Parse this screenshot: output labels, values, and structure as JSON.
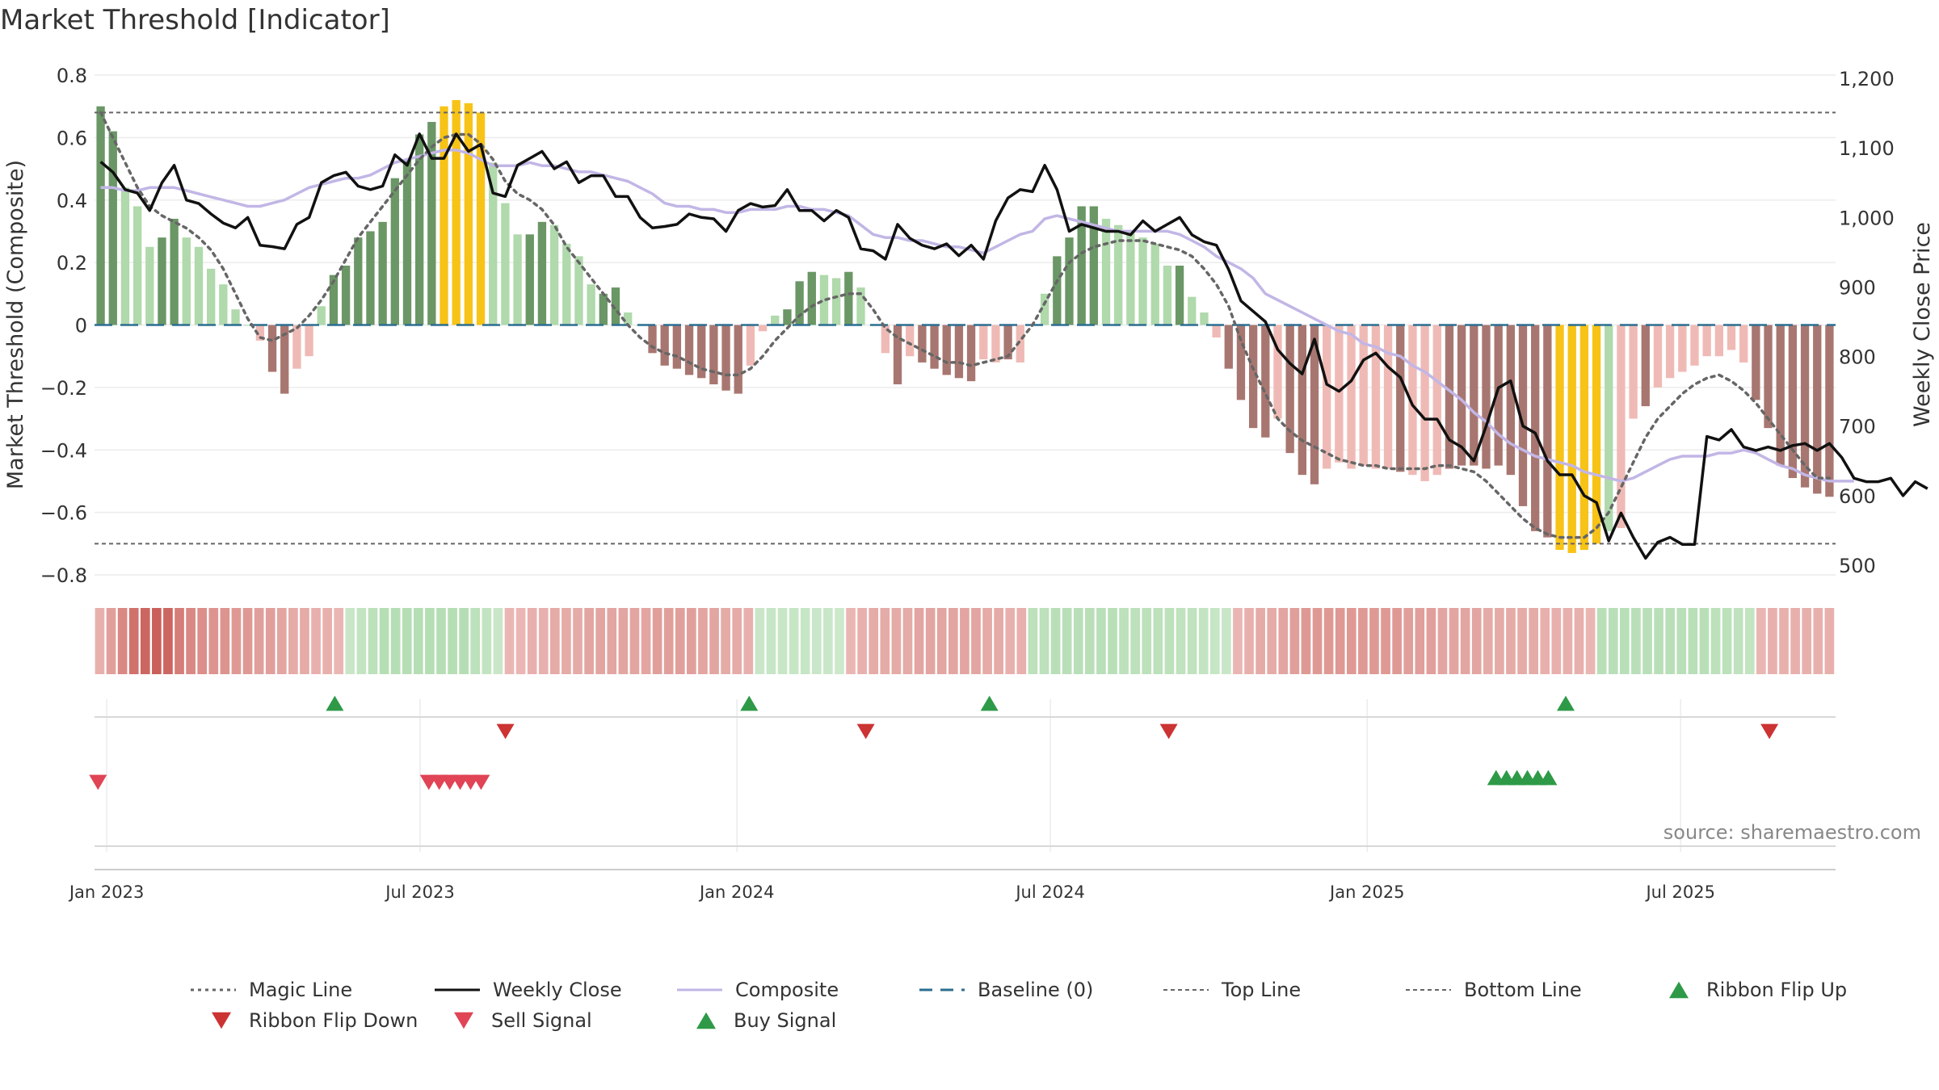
{
  "chart_data": {
    "type": "bar",
    "title": "Market Threshold [Indicator]",
    "ylabel": "Market Threshold (Composite)",
    "y2label": "Weekly Close Price",
    "source": "source: sharemaestro.com",
    "x_tick_labels": [
      "Jan 2023",
      "Jul 2023",
      "Jan 2024",
      "Jul 2024",
      "Jan 2025",
      "Jul 2025"
    ],
    "y_tick_labels": [
      "0.8",
      "0.6",
      "0.4",
      "0.2",
      "0",
      "−0.2",
      "−0.4",
      "−0.6",
      "−0.8"
    ],
    "y2_tick_labels": [
      "1,200",
      "1,100",
      "1,000",
      "900",
      "800",
      "700",
      "600",
      "500"
    ],
    "ylim": [
      -0.8,
      0.8
    ],
    "y2lim": [
      500,
      1200
    ],
    "top_line": 0.68,
    "bottom_line": -0.7,
    "grid": true,
    "legend_position": "bottom",
    "colors": {
      "strong_up": "#6a9765",
      "weak_up": "#b0d9ac",
      "strong_down": "#a87670",
      "weak_down": "#efbab5",
      "extreme": "#f7c317",
      "weekly_close": "#111111",
      "composite": "#c2b6e6",
      "magic": "#666666",
      "baseline": "#2c6e91",
      "ribbon_flip_up": "#2e9a47",
      "ribbon_flip_down": "#cc3333",
      "sell": "#e04455",
      "buy": "#2e9a47"
    },
    "composite_bars": [
      0.7,
      0.62,
      0.44,
      0.38,
      0.25,
      0.28,
      0.34,
      0.28,
      0.25,
      0.18,
      0.13,
      0.05,
      0,
      -0.05,
      -0.15,
      -0.22,
      -0.14,
      -0.1,
      0.06,
      0.16,
      0.19,
      0.28,
      0.3,
      0.33,
      0.47,
      0.53,
      0.61,
      0.65,
      0.7,
      0.72,
      0.71,
      0.68,
      0.52,
      0.39,
      0.29,
      0.29,
      0.33,
      0.32,
      0.26,
      0.22,
      0.13,
      0.1,
      0.12,
      0.04,
      0,
      -0.09,
      -0.13,
      -0.14,
      -0.16,
      -0.17,
      -0.19,
      -0.21,
      -0.22,
      -0.13,
      -0.02,
      0.03,
      0.05,
      0.14,
      0.17,
      0.16,
      0.15,
      0.17,
      0.12,
      0,
      -0.09,
      -0.19,
      -0.1,
      -0.12,
      -0.14,
      -0.16,
      -0.17,
      -0.18,
      -0.11,
      -0.12,
      -0.11,
      -0.12,
      0,
      0.1,
      0.22,
      0.28,
      0.38,
      0.38,
      0.34,
      0.32,
      0.3,
      0.28,
      0.26,
      0.19,
      0.19,
      0.09,
      0.04,
      -0.04,
      -0.14,
      -0.24,
      -0.33,
      -0.36,
      -0.3,
      -0.41,
      -0.48,
      -0.51,
      -0.46,
      -0.44,
      -0.46,
      -0.45,
      -0.46,
      -0.46,
      -0.47,
      -0.48,
      -0.5,
      -0.48,
      -0.46,
      -0.45,
      -0.45,
      -0.46,
      -0.45,
      -0.48,
      -0.58,
      -0.66,
      -0.68,
      -0.72,
      -0.73,
      -0.72,
      -0.7,
      -0.66,
      -0.65,
      -0.3,
      -0.26,
      -0.2,
      -0.17,
      -0.15,
      -0.13,
      -0.1,
      -0.1,
      -0.08,
      -0.12,
      -0.24,
      -0.33,
      -0.45,
      -0.49,
      -0.52,
      -0.54,
      -0.55
    ],
    "bar_categories": [
      "strong_up",
      "strong_up",
      "weak_up",
      "weak_up",
      "weak_up",
      "strong_up",
      "strong_up",
      "weak_up",
      "weak_up",
      "weak_up",
      "weak_up",
      "weak_up",
      "weak_up",
      "weak_down",
      "strong_down",
      "strong_down",
      "weak_down",
      "weak_down",
      "weak_up",
      "strong_up",
      "strong_up",
      "strong_up",
      "strong_up",
      "strong_up",
      "strong_up",
      "strong_up",
      "strong_up",
      "strong_up",
      "extreme",
      "extreme",
      "extreme",
      "extreme",
      "weak_up",
      "weak_up",
      "weak_up",
      "strong_up",
      "strong_up",
      "weak_up",
      "weak_up",
      "weak_up",
      "weak_up",
      "strong_up",
      "strong_up",
      "weak_up",
      "weak_up",
      "strong_down",
      "strong_down",
      "strong_down",
      "strong_down",
      "strong_down",
      "strong_down",
      "strong_down",
      "strong_down",
      "weak_down",
      "weak_down",
      "weak_up",
      "strong_up",
      "strong_up",
      "strong_up",
      "weak_up",
      "weak_up",
      "strong_up",
      "weak_up",
      "weak_up",
      "weak_down",
      "strong_down",
      "weak_down",
      "strong_down",
      "strong_down",
      "strong_down",
      "strong_down",
      "strong_down",
      "weak_down",
      "weak_down",
      "strong_down",
      "weak_down",
      "weak_up",
      "weak_up",
      "strong_up",
      "strong_up",
      "strong_up",
      "strong_up",
      "weak_up",
      "weak_up",
      "weak_up",
      "weak_up",
      "weak_up",
      "weak_up",
      "strong_up",
      "weak_up",
      "weak_up",
      "weak_down",
      "strong_down",
      "strong_down",
      "strong_down",
      "strong_down",
      "weak_down",
      "strong_down",
      "strong_down",
      "strong_down",
      "weak_down",
      "weak_down",
      "weak_down",
      "weak_down",
      "weak_down",
      "weak_down",
      "strong_down",
      "weak_down",
      "weak_down",
      "weak_down",
      "strong_down",
      "strong_down",
      "strong_down",
      "strong_down",
      "strong_down",
      "strong_down",
      "strong_down",
      "strong_down",
      "strong_down",
      "extreme",
      "extreme",
      "extreme",
      "extreme",
      "weak_up",
      "weak_down",
      "weak_down",
      "strong_down",
      "weak_down",
      "weak_down",
      "weak_down",
      "weak_down",
      "weak_down",
      "weak_down",
      "weak_down",
      "weak_down",
      "strong_down",
      "strong_down",
      "strong_down",
      "strong_down",
      "strong_down",
      "strong_down",
      "strong_down"
    ],
    "weekly_close": [
      1080,
      1065,
      1040,
      1035,
      1010,
      1050,
      1075,
      1025,
      1020,
      1005,
      992,
      985,
      1000,
      960,
      958,
      955,
      990,
      1000,
      1050,
      1060,
      1065,
      1045,
      1040,
      1045,
      1090,
      1075,
      1120,
      1085,
      1085,
      1120,
      1095,
      1105,
      1035,
      1030,
      1075,
      1085,
      1095,
      1070,
      1080,
      1050,
      1060,
      1060,
      1030,
      1030,
      1000,
      985,
      987,
      990,
      1005,
      1000,
      998,
      980,
      1010,
      1020,
      1015,
      1017,
      1040,
      1010,
      1010,
      995,
      1010,
      1000,
      955,
      952,
      940,
      990,
      970,
      960,
      955,
      962,
      945,
      960,
      940,
      995,
      1028,
      1040,
      1037,
      1075,
      1040,
      980,
      990,
      985,
      980,
      980,
      975,
      995,
      980,
      990,
      1000,
      975,
      965,
      960,
      925,
      880,
      865,
      850,
      810,
      790,
      775,
      825,
      760,
      750,
      765,
      795,
      805,
      785,
      770,
      730,
      710,
      710,
      680,
      670,
      650,
      700,
      755,
      765,
      700,
      690,
      650,
      630,
      630,
      600,
      590,
      535,
      575,
      540,
      510,
      533,
      540,
      530,
      530,
      685,
      680,
      695,
      670,
      665,
      670,
      665,
      672,
      675,
      665,
      675,
      655,
      625,
      620,
      620,
      625,
      600,
      620,
      610
    ],
    "composite_line": [
      0.44,
      0.44,
      0.43,
      0.43,
      0.44,
      0.44,
      0.44,
      0.43,
      0.42,
      0.41,
      0.4,
      0.39,
      0.38,
      0.38,
      0.39,
      0.4,
      0.42,
      0.44,
      0.45,
      0.46,
      0.47,
      0.47,
      0.48,
      0.5,
      0.52,
      0.53,
      0.54,
      0.55,
      0.56,
      0.56,
      0.55,
      0.53,
      0.51,
      0.51,
      0.51,
      0.52,
      0.51,
      0.51,
      0.5,
      0.49,
      0.49,
      0.48,
      0.47,
      0.46,
      0.44,
      0.42,
      0.39,
      0.38,
      0.38,
      0.37,
      0.37,
      0.36,
      0.36,
      0.37,
      0.37,
      0.37,
      0.38,
      0.38,
      0.37,
      0.37,
      0.36,
      0.35,
      0.32,
      0.29,
      0.28,
      0.28,
      0.27,
      0.27,
      0.26,
      0.25,
      0.25,
      0.24,
      0.23,
      0.25,
      0.27,
      0.29,
      0.3,
      0.34,
      0.35,
      0.34,
      0.33,
      0.32,
      0.31,
      0.3,
      0.3,
      0.3,
      0.3,
      0.3,
      0.29,
      0.27,
      0.25,
      0.22,
      0.2,
      0.18,
      0.15,
      0.1,
      0.08,
      0.06,
      0.04,
      0.02,
      0,
      -0.02,
      -0.03,
      -0.06,
      -0.07,
      -0.09,
      -0.1,
      -0.13,
      -0.15,
      -0.18,
      -0.21,
      -0.24,
      -0.28,
      -0.31,
      -0.35,
      -0.38,
      -0.4,
      -0.42,
      -0.43,
      -0.44,
      -0.45,
      -0.47,
      -0.48,
      -0.49,
      -0.5,
      -0.49,
      -0.47,
      -0.45,
      -0.43,
      -0.42,
      -0.42,
      -0.42,
      -0.41,
      -0.41,
      -0.4,
      -0.41,
      -0.43,
      -0.45,
      -0.46,
      -0.48,
      -0.49,
      -0.5,
      -0.5,
      -0.5
    ],
    "magic_line": [
      0.68,
      0.6,
      0.52,
      0.44,
      0.38,
      0.35,
      0.33,
      0.31,
      0.28,
      0.24,
      0.18,
      0.1,
      0.02,
      -0.04,
      -0.05,
      -0.03,
      -0.01,
      0.03,
      0.08,
      0.14,
      0.21,
      0.28,
      0.33,
      0.38,
      0.43,
      0.48,
      0.53,
      0.57,
      0.6,
      0.61,
      0.61,
      0.58,
      0.53,
      0.46,
      0.42,
      0.4,
      0.37,
      0.32,
      0.25,
      0.2,
      0.15,
      0.1,
      0.05,
      0.0,
      -0.04,
      -0.07,
      -0.09,
      -0.1,
      -0.12,
      -0.14,
      -0.15,
      -0.16,
      -0.16,
      -0.14,
      -0.1,
      -0.05,
      -0.01,
      0.03,
      0.06,
      0.08,
      0.09,
      0.1,
      0.1,
      0.05,
      -0.01,
      -0.04,
      -0.06,
      -0.08,
      -0.1,
      -0.12,
      -0.12,
      -0.13,
      -0.12,
      -0.11,
      -0.1,
      -0.05,
      0.0,
      0.07,
      0.14,
      0.2,
      0.23,
      0.25,
      0.26,
      0.27,
      0.27,
      0.27,
      0.26,
      0.25,
      0.24,
      0.22,
      0.18,
      0.13,
      0.06,
      -0.05,
      -0.14,
      -0.22,
      -0.3,
      -0.34,
      -0.37,
      -0.39,
      -0.41,
      -0.43,
      -0.44,
      -0.45,
      -0.45,
      -0.46,
      -0.46,
      -0.46,
      -0.46,
      -0.45,
      -0.45,
      -0.46,
      -0.47,
      -0.5,
      -0.54,
      -0.58,
      -0.62,
      -0.65,
      -0.67,
      -0.68,
      -0.68,
      -0.68,
      -0.65,
      -0.6,
      -0.52,
      -0.44,
      -0.36,
      -0.3,
      -0.26,
      -0.22,
      -0.19,
      -0.17,
      -0.16,
      -0.18,
      -0.21,
      -0.25,
      -0.3,
      -0.35,
      -0.4,
      -0.45,
      -0.49,
      -0.49
    ],
    "ribbon": [
      -0.25,
      -0.4,
      -0.6,
      -0.8,
      -0.9,
      -0.95,
      -0.9,
      -0.7,
      -0.6,
      -0.55,
      -0.5,
      -0.5,
      -0.45,
      -0.45,
      -0.4,
      -0.4,
      -0.35,
      -0.3,
      -0.3,
      -0.25,
      -0.25,
      -0.2,
      0.2,
      0.3,
      0.4,
      0.5,
      0.5,
      0.5,
      0.5,
      0.5,
      0.5,
      0.5,
      0.5,
      0.4,
      0.3,
      0.2,
      -0.2,
      -0.2,
      -0.25,
      -0.25,
      -0.3,
      -0.3,
      -0.3,
      -0.35,
      -0.35,
      -0.35,
      -0.35,
      -0.35,
      -0.35,
      -0.4,
      -0.4,
      -0.4,
      -0.4,
      -0.35,
      -0.35,
      -0.3,
      -0.3,
      -0.25,
      0.2,
      0.25,
      0.25,
      0.25,
      0.25,
      0.2,
      0.2,
      0.15,
      -0.2,
      -0.25,
      -0.3,
      -0.3,
      -0.3,
      -0.3,
      -0.35,
      -0.35,
      -0.35,
      -0.35,
      -0.35,
      -0.35,
      -0.3,
      -0.3,
      -0.25,
      -0.25,
      0.4,
      0.4,
      0.45,
      0.45,
      0.45,
      0.45,
      0.45,
      0.45,
      0.4,
      0.4,
      0.4,
      0.4,
      0.4,
      0.35,
      0.35,
      0.3,
      0.25,
      0.2,
      -0.2,
      -0.25,
      -0.3,
      -0.3,
      -0.35,
      -0.4,
      -0.45,
      -0.45,
      -0.45,
      -0.45,
      -0.45,
      -0.45,
      -0.45,
      -0.45,
      -0.45,
      -0.4,
      -0.4,
      -0.4,
      -0.35,
      -0.35,
      -0.35,
      -0.35,
      -0.3,
      -0.3,
      -0.3,
      -0.3,
      -0.3,
      -0.25,
      -0.25,
      -0.25,
      -0.25,
      -0.2,
      0.45,
      0.45,
      0.45,
      0.45,
      0.45,
      0.45,
      0.45,
      0.45,
      0.45,
      0.45,
      0.4,
      0.4,
      0.35,
      0.3,
      -0.2,
      -0.25,
      -0.25,
      -0.25,
      -0.25,
      -0.25,
      -0.25
    ],
    "ribbon_flip_up": [
      0.138,
      0.376,
      0.514,
      0.845
    ],
    "ribbon_flip_down": [
      0.236,
      0.443,
      0.617,
      0.962
    ],
    "sell_signals": [
      0.002,
      0.192,
      0.198,
      0.204,
      0.21,
      0.216,
      0.222
    ],
    "buy_signals": [
      0.805,
      0.811,
      0.817,
      0.823,
      0.829,
      0.835
    ],
    "legend": [
      {
        "label": "Magic Line",
        "kind": "dotted",
        "color_key": "magic"
      },
      {
        "label": "Weekly Close",
        "kind": "line",
        "color_key": "weekly_close"
      },
      {
        "label": "Composite",
        "kind": "line",
        "color_key": "composite"
      },
      {
        "label": "Baseline (0)",
        "kind": "dashed",
        "color_key": "baseline"
      },
      {
        "label": "Top Line",
        "kind": "finedash",
        "color_key": "magic"
      },
      {
        "label": "Bottom Line",
        "kind": "finedash",
        "color_key": "magic"
      },
      {
        "label": "Ribbon Flip Up",
        "kind": "tri-up",
        "color_key": "ribbon_flip_up"
      },
      {
        "label": "Ribbon Flip Down",
        "kind": "tri-down",
        "color_key": "ribbon_flip_down"
      },
      {
        "label": "Sell Signal",
        "kind": "tri-down",
        "color_key": "sell"
      },
      {
        "label": "Buy Signal",
        "kind": "tri-up",
        "color_key": "buy"
      }
    ]
  }
}
